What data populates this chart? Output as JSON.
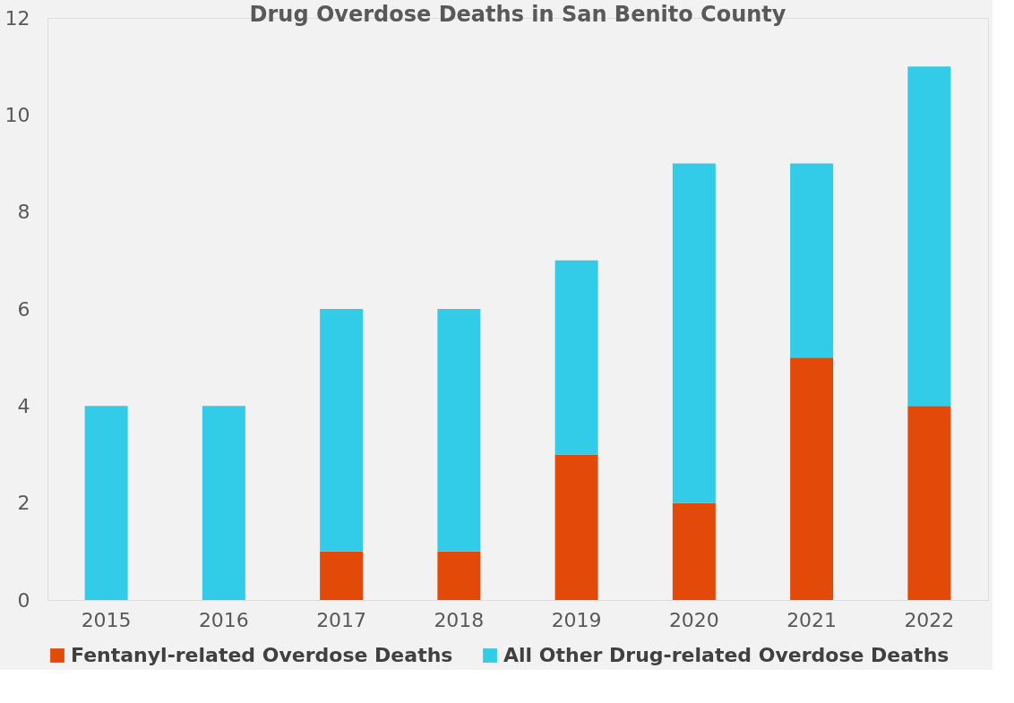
{
  "chart_data": {
    "type": "bar",
    "title": "Drug Overdose Deaths in San Benito County",
    "categories": [
      "2015",
      "2016",
      "2017",
      "2018",
      "2019",
      "2020",
      "2021",
      "2022"
    ],
    "stacked": true,
    "series": [
      {
        "name": "Fentanyl-related Overdose Deaths",
        "color": "#e34a0a",
        "values": [
          0,
          0,
          1,
          1,
          3,
          2,
          5,
          4
        ]
      },
      {
        "name": "All Other Drug-related Overdose Deaths",
        "color": "#33cce8",
        "values": [
          4,
          4,
          5,
          5,
          4,
          7,
          4,
          7
        ]
      }
    ],
    "ylim": [
      0,
      12
    ],
    "yticks": [
      0,
      2,
      4,
      6,
      8,
      10,
      12
    ],
    "grid": false,
    "legend": "bottom"
  }
}
